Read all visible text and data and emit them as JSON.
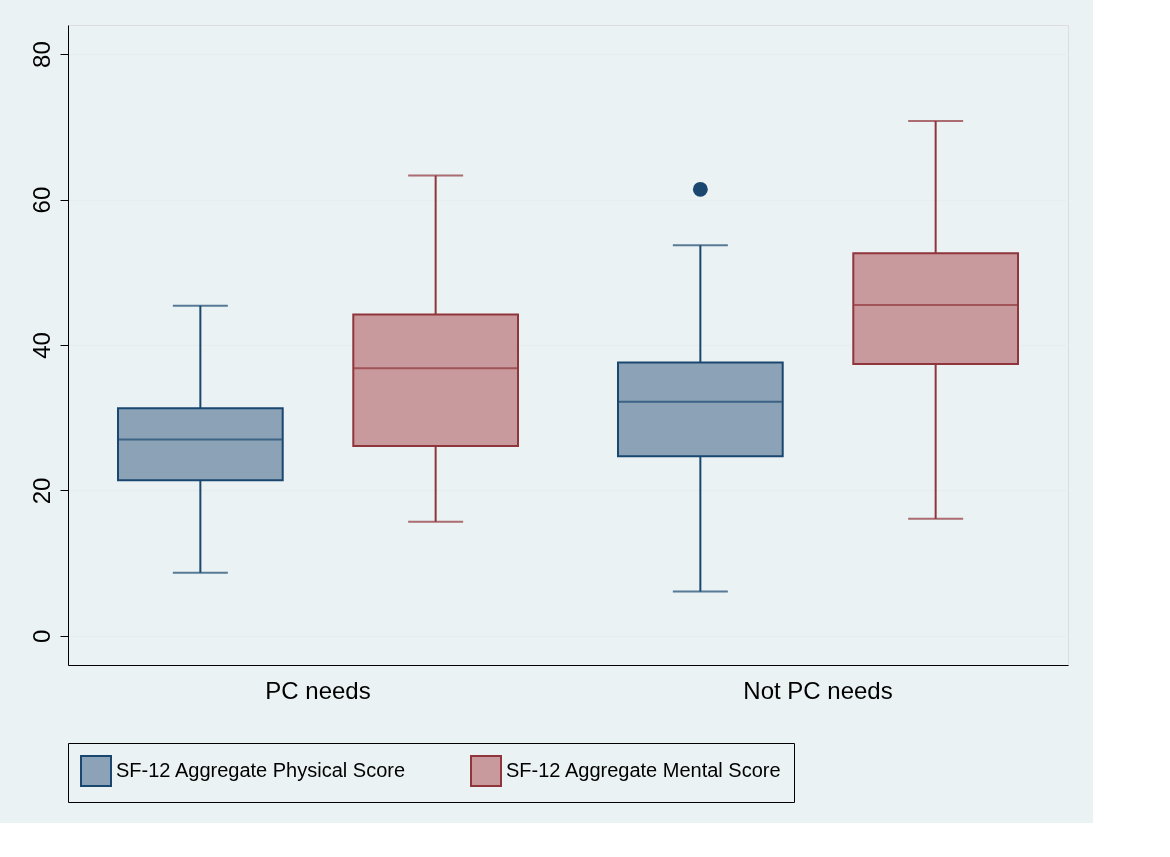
{
  "chart_data": {
    "type": "box",
    "categories": [
      "PC needs",
      "Not PC needs"
    ],
    "ylim": [
      -4,
      84
    ],
    "yticks": [
      0,
      20,
      40,
      60,
      80
    ],
    "grid": "y",
    "legend": "bottom",
    "series": [
      {
        "name": "SF-12 Aggregate Physical Score",
        "color": "#1a476f",
        "boxes": [
          {
            "low": 8.7,
            "q1": 21.4,
            "median": 27.0,
            "q3": 31.3,
            "high": 45.4
          },
          {
            "low": 6.1,
            "q1": 24.7,
            "median": 32.2,
            "q3": 37.6,
            "high": 53.7,
            "outliers": [
              61.4
            ]
          }
        ]
      },
      {
        "name": "SF-12 Aggregate Mental Score",
        "color": "#90353b",
        "boxes": [
          {
            "low": 15.7,
            "q1": 26.1,
            "median": 36.8,
            "q3": 44.2,
            "high": 63.3
          },
          {
            "low": 16.1,
            "q1": 37.4,
            "median": 45.5,
            "q3": 52.6,
            "high": 70.8
          }
        ]
      }
    ]
  }
}
